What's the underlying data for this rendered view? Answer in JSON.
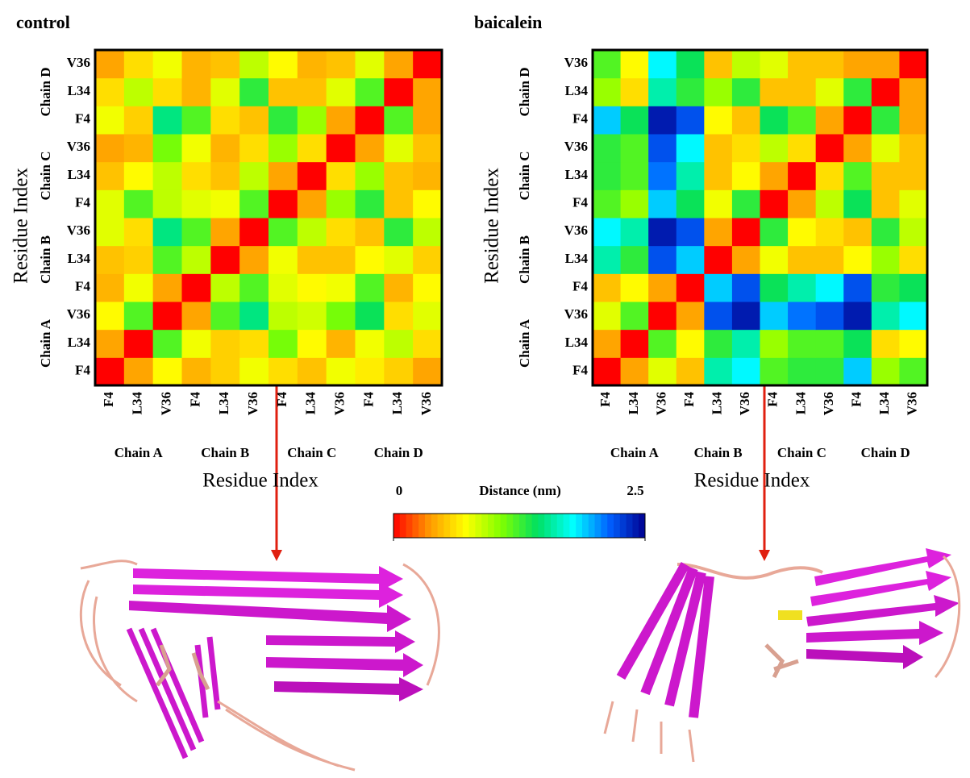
{
  "chart_data": [
    {
      "type": "heatmap",
      "title": "control",
      "categories": [
        "F4",
        "L34",
        "V36",
        "F4",
        "L34",
        "V36",
        "F4",
        "L34",
        "V36",
        "F4",
        "L34",
        "V36"
      ],
      "groups": [
        "Chain A",
        "Chain B",
        "Chain C",
        "Chain D"
      ],
      "xlabel": "Residue Index",
      "ylabel": "Residue Index",
      "values": [
        [
          0,
          0.4,
          0.7,
          0.45,
          0.55,
          0.75,
          0.6,
          0.5,
          0.75,
          0.65,
          0.55,
          0.4
        ],
        [
          0.4,
          0,
          1.2,
          0.75,
          0.55,
          0.6,
          1.1,
          0.7,
          0.45,
          0.75,
          0.9,
          0.6
        ],
        [
          0.7,
          1.2,
          0,
          0.4,
          1.2,
          1.5,
          0.9,
          0.85,
          1.1,
          1.4,
          0.6,
          0.8
        ],
        [
          0.45,
          0.75,
          0.4,
          0,
          0.9,
          1.2,
          0.8,
          0.7,
          0.75,
          1.2,
          0.45,
          0.7
        ],
        [
          0.5,
          0.55,
          1.2,
          0.9,
          0,
          0.4,
          0.75,
          0.5,
          0.5,
          0.7,
          0.8,
          0.55
        ],
        [
          0.8,
          0.6,
          1.5,
          1.2,
          0.4,
          0,
          1.2,
          0.9,
          0.6,
          0.5,
          1.3,
          0.9
        ],
        [
          0.8,
          1.2,
          0.9,
          0.8,
          0.75,
          1.2,
          0,
          0.4,
          1.0,
          1.3,
          0.5,
          0.7
        ],
        [
          0.5,
          0.7,
          0.9,
          0.6,
          0.5,
          0.9,
          0.4,
          0,
          0.6,
          1.0,
          0.5,
          0.45
        ],
        [
          0.4,
          0.45,
          1.1,
          0.75,
          0.45,
          0.6,
          1.0,
          0.6,
          0,
          0.4,
          0.8,
          0.5
        ],
        [
          0.75,
          0.55,
          1.5,
          1.2,
          0.6,
          0.5,
          1.3,
          1.0,
          0.4,
          0,
          1.2,
          0.4
        ],
        [
          0.6,
          0.9,
          0.6,
          0.45,
          0.8,
          1.3,
          0.5,
          0.5,
          0.8,
          1.2,
          0,
          0.4
        ],
        [
          0.4,
          0.6,
          0.75,
          0.45,
          0.5,
          0.9,
          0.7,
          0.45,
          0.5,
          0.8,
          0.4,
          0
        ]
      ]
    },
    {
      "type": "heatmap",
      "title": "baicalein",
      "categories": [
        "F4",
        "L34",
        "V36",
        "F4",
        "L34",
        "V36",
        "F4",
        "L34",
        "V36",
        "F4",
        "L34",
        "V36"
      ],
      "groups": [
        "Chain A",
        "Chain B",
        "Chain C",
        "Chain D"
      ],
      "xlabel": "Residue Index",
      "ylabel": "Residue Index",
      "values": [
        [
          0,
          0.4,
          0.8,
          0.5,
          1.6,
          1.8,
          1.2,
          1.3,
          1.3,
          1.9,
          1.0,
          1.2
        ],
        [
          0.4,
          0,
          1.2,
          0.7,
          1.3,
          1.6,
          1.0,
          1.2,
          1.2,
          1.4,
          0.6,
          0.7
        ],
        [
          0.8,
          1.2,
          0,
          0.4,
          2.2,
          2.4,
          1.9,
          2.1,
          2.2,
          2.4,
          1.6,
          1.8
        ],
        [
          0.5,
          0.7,
          0.4,
          0,
          1.9,
          2.2,
          1.4,
          1.6,
          1.8,
          2.2,
          1.3,
          1.4
        ],
        [
          1.6,
          1.3,
          2.2,
          1.9,
          0,
          0.4,
          0.75,
          0.5,
          0.5,
          0.7,
          1.0,
          0.6
        ],
        [
          1.8,
          1.6,
          2.4,
          2.2,
          0.4,
          0,
          1.3,
          0.7,
          0.6,
          0.5,
          1.3,
          0.9
        ],
        [
          1.2,
          1.0,
          1.9,
          1.4,
          0.75,
          1.3,
          0,
          0.4,
          0.9,
          1.4,
          0.5,
          0.8
        ],
        [
          1.3,
          1.2,
          2.1,
          1.6,
          0.5,
          0.7,
          0.4,
          0,
          0.6,
          1.2,
          0.5,
          0.5
        ],
        [
          1.3,
          1.2,
          2.2,
          1.8,
          0.5,
          0.6,
          0.9,
          0.6,
          0,
          0.4,
          0.8,
          0.5
        ],
        [
          1.9,
          1.4,
          2.4,
          2.2,
          0.7,
          0.5,
          1.4,
          1.2,
          0.4,
          0,
          1.3,
          0.4
        ],
        [
          1.0,
          0.6,
          1.6,
          1.3,
          1.0,
          1.3,
          0.5,
          0.5,
          0.8,
          1.3,
          0,
          0.4
        ],
        [
          1.2,
          0.7,
          1.8,
          1.4,
          0.5,
          0.9,
          0.8,
          0.5,
          0.5,
          0.4,
          0.4,
          0
        ]
      ]
    }
  ],
  "colorbar": {
    "label": "Distance (nm)",
    "zlim": [
      0,
      2.5
    ],
    "ticks": [
      0,
      2.5
    ],
    "colors": [
      "#ff0000",
      "#ff9900",
      "#ffff00",
      "#80ff00",
      "#00e060",
      "#00ffff",
      "#0060ff",
      "#000090"
    ]
  }
}
